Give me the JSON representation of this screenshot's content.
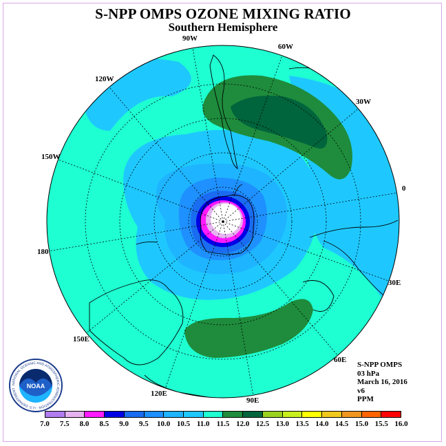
{
  "title": "S-NPP OMPS OZONE MIXING RATIO",
  "subtitle": "Southern Hemisphere",
  "longitude_labels": {
    "90W": "90W",
    "60W": "60W",
    "120W": "120W",
    "30W": "30W",
    "150W": "150W",
    "0": "0",
    "180": "180",
    "30E": "30E",
    "150E": "150E",
    "60E": "60E",
    "120E": "120E",
    "90E": "90E"
  },
  "info": {
    "instrument": "S-NPP OMPS",
    "level": "03 hPa",
    "date": "March 16, 2016",
    "version": "v6",
    "units": "PPM"
  },
  "logo": {
    "text": "NOAA",
    "ring_text": "NATIONAL OCEANIC AND ATMOSPHERIC ADMINISTRATION · U.S. DEPARTMENT OF COMMERCE"
  },
  "colorbar": {
    "ticks": [
      "7.0",
      "7.5",
      "8.0",
      "8.5",
      "9.0",
      "9.5",
      "10.0",
      "10.5",
      "11.0",
      "11.5",
      "12.0",
      "12.5",
      "13.0",
      "13.5",
      "14.0",
      "14.5",
      "15.0",
      "15.5",
      "16.0"
    ],
    "colors": [
      "#b07cf0",
      "#e6b3f0",
      "#ff1aff",
      "#0000e6",
      "#1a6cf0",
      "#1e90ff",
      "#1eb4ff",
      "#1ec8ff",
      "#1effd2",
      "#1e8c3c",
      "#00643c",
      "#9bd21e",
      "#c8f01e",
      "#ffff00",
      "#f0c81e",
      "#f0961e",
      "#ff6400",
      "#ff0000",
      "#8c5a46"
    ]
  },
  "map": {
    "projection": "south-polar-stereographic",
    "center_value_ppm": 8.0,
    "outer_value_ppm": 11.0
  }
}
